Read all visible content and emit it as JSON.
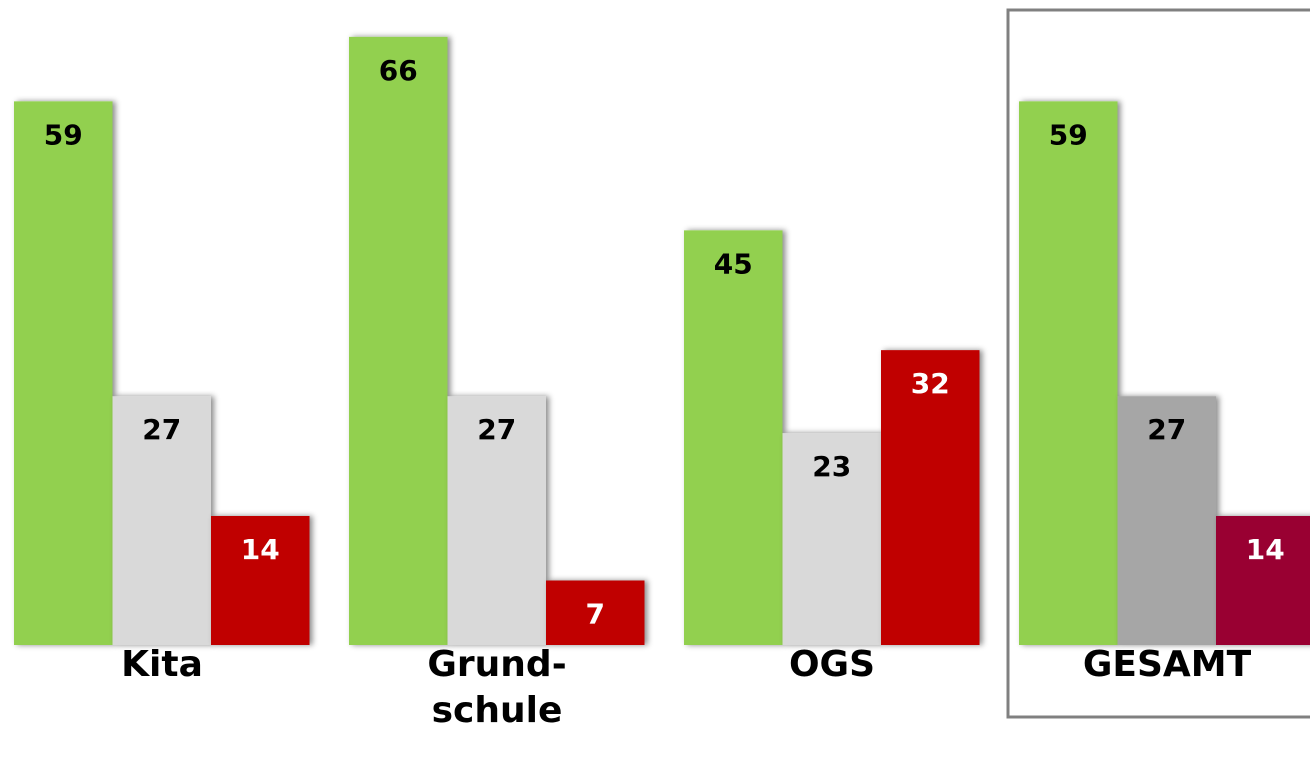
{
  "chart_data": {
    "type": "bar",
    "categories": [
      "Kita",
      "Grund-\nschule",
      "OGS",
      "GESAMT"
    ],
    "series": [
      {
        "colors": [
          "#92d050",
          "#92d050",
          "#92d050",
          "#92d050"
        ],
        "label_color": "#000000",
        "values": [
          59,
          66,
          45,
          59
        ]
      },
      {
        "colors": [
          "#d9d9d9",
          "#d9d9d9",
          "#d9d9d9",
          "#a6a6a6"
        ],
        "label_color": "#000000",
        "values": [
          27,
          27,
          23,
          27
        ]
      },
      {
        "colors": [
          "#c00000",
          "#c00000",
          "#c00000",
          "#990033"
        ],
        "label_color": "#ffffff",
        "values": [
          14,
          7,
          32,
          14
        ]
      }
    ],
    "ylim": [
      0,
      70
    ],
    "grid": false,
    "highlight_box_color": "#808080"
  }
}
